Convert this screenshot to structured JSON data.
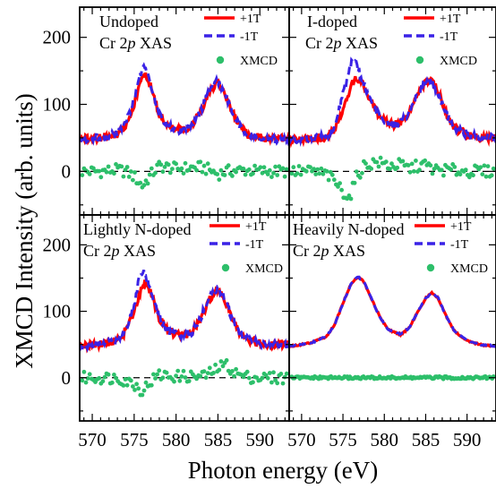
{
  "colors": {
    "plus": "#ff0000",
    "minus": "#3a22e6",
    "xmcd": "#2dbf6a",
    "axis": "#000000"
  },
  "icons": {
    "xmcd_marker": "filled-circle"
  },
  "figure": {
    "ylabel": "XMCD Intensity (arb. units)",
    "xlabel": "Photon energy (eV)",
    "xticks": [
      "570",
      "575",
      "580",
      "585",
      "590"
    ],
    "yticks": [
      "0",
      "100",
      "200"
    ]
  },
  "chart_data": [
    {
      "type": "line",
      "panel": "top-left",
      "title": "Undoped",
      "subtitle": [
        "Cr 2",
        "p",
        " XAS"
      ],
      "xlim": [
        568.5,
        593.5
      ],
      "ylim": [
        -65,
        245
      ],
      "series": [
        {
          "name": "+1T",
          "style": "solid",
          "x": [
            569,
            571,
            573,
            574,
            575,
            575.7,
            576.3,
            577,
            578,
            579,
            580,
            581,
            582,
            583,
            584,
            584.8,
            585.5,
            586.5,
            587.5,
            588.5,
            590,
            591.5,
            593
          ],
          "y": [
            48,
            50,
            56,
            70,
            100,
            130,
            148,
            125,
            85,
            68,
            62,
            62,
            70,
            90,
            118,
            132,
            125,
            95,
            68,
            55,
            50,
            48,
            48
          ]
        },
        {
          "name": "-1T",
          "style": "dashed",
          "x": [
            569,
            571,
            573,
            574,
            575,
            575.7,
            576.3,
            577,
            578,
            579,
            580,
            581,
            582,
            583,
            584,
            584.8,
            585.5,
            586.5,
            587.5,
            588.5,
            590,
            591.5,
            593
          ],
          "y": [
            48,
            50,
            56,
            72,
            108,
            145,
            158,
            125,
            85,
            68,
            62,
            62,
            70,
            92,
            122,
            134,
            125,
            95,
            68,
            55,
            50,
            48,
            48
          ]
        },
        {
          "name": "XMCD",
          "style": "markers",
          "x": [
            569,
            571,
            573,
            574,
            575,
            576,
            577,
            578,
            580,
            583,
            584,
            585,
            586,
            588,
            590,
            593
          ],
          "y": [
            0,
            0,
            2,
            0,
            -8,
            -22,
            -5,
            8,
            4,
            6,
            2,
            -4,
            0,
            2,
            0,
            0
          ]
        }
      ]
    },
    {
      "type": "line",
      "panel": "top-right",
      "title": "I-doped",
      "subtitle": [
        "Cr 2",
        "p",
        " XAS"
      ],
      "xlim": [
        568.5,
        593.5
      ],
      "ylim": [
        -65,
        245
      ],
      "series": [
        {
          "name": "+1T",
          "style": "solid",
          "x": [
            569,
            571,
            573,
            574,
            575,
            576,
            576.7,
            577.5,
            578.5,
            579.5,
            581,
            582,
            583,
            584,
            585,
            585.6,
            586.5,
            587.5,
            588.5,
            590,
            591.5,
            593
          ],
          "y": [
            48,
            48,
            52,
            62,
            92,
            128,
            140,
            128,
            100,
            80,
            70,
            72,
            88,
            112,
            132,
            138,
            120,
            85,
            65,
            55,
            50,
            50
          ]
        },
        {
          "name": "-1T",
          "style": "dashed",
          "x": [
            569,
            571,
            573,
            574,
            575,
            576,
            576.4,
            577.2,
            578.5,
            579.5,
            581,
            582,
            583,
            584,
            585,
            585.6,
            586.5,
            587.5,
            588.5,
            590,
            591.5,
            593
          ],
          "y": [
            48,
            48,
            52,
            68,
            115,
            160,
            168,
            140,
            100,
            80,
            70,
            72,
            88,
            115,
            135,
            136,
            118,
            85,
            65,
            55,
            50,
            50
          ]
        },
        {
          "name": "XMCD",
          "style": "markers",
          "x": [
            569,
            571,
            573,
            574,
            575,
            575.8,
            576.5,
            577.5,
            579,
            581,
            582,
            583,
            584,
            585,
            586,
            588,
            590,
            593
          ],
          "y": [
            0,
            0,
            -4,
            -15,
            -30,
            -40,
            -12,
            8,
            14,
            8,
            10,
            4,
            8,
            10,
            2,
            2,
            0,
            0
          ]
        }
      ]
    },
    {
      "type": "line",
      "panel": "bottom-left",
      "title": "Lightly N-doped",
      "subtitle": [
        "Cr 2",
        "p",
        " XAS"
      ],
      "xlim": [
        568.5,
        593.5
      ],
      "ylim": [
        -65,
        245
      ],
      "series": [
        {
          "name": "+1T",
          "style": "solid",
          "x": [
            569,
            571,
            573,
            574,
            575,
            575.8,
            576.4,
            577,
            578,
            579,
            580,
            581,
            582,
            583,
            584,
            584.8,
            585.6,
            586.5,
            587.5,
            588.5,
            590,
            591.5,
            593
          ],
          "y": [
            48,
            50,
            56,
            70,
            100,
            130,
            145,
            128,
            90,
            72,
            65,
            64,
            70,
            90,
            118,
            132,
            125,
            95,
            70,
            58,
            52,
            50,
            50
          ]
        },
        {
          "name": "-1T",
          "style": "dashed",
          "x": [
            569,
            571,
            573,
            574,
            575,
            575.6,
            576.1,
            577,
            578,
            579,
            580,
            581,
            582,
            583,
            584,
            584.8,
            585.6,
            586.5,
            587.5,
            588.5,
            590,
            591.5,
            593
          ],
          "y": [
            48,
            50,
            56,
            74,
            110,
            150,
            163,
            130,
            90,
            72,
            65,
            64,
            70,
            92,
            122,
            134,
            125,
            95,
            70,
            58,
            52,
            50,
            50
          ]
        },
        {
          "name": "XMCD",
          "style": "markers",
          "x": [
            569,
            571,
            573,
            574,
            575,
            576,
            577,
            578,
            580,
            583,
            584,
            585,
            586,
            587,
            588,
            590,
            593
          ],
          "y": [
            0,
            0,
            0,
            -4,
            -10,
            -20,
            -5,
            4,
            2,
            2,
            6,
            15,
            20,
            8,
            2,
            0,
            0
          ]
        }
      ]
    },
    {
      "type": "line",
      "panel": "bottom-right",
      "title": "Heavily N-doped",
      "subtitle": [
        "Cr 2",
        "p",
        " XAS"
      ],
      "xlim": [
        568.5,
        593.5
      ],
      "ylim": [
        -65,
        245
      ],
      "series": [
        {
          "name": "+1T",
          "style": "solid",
          "x": [
            569,
            571,
            573,
            574,
            575,
            576,
            576.8,
            577.5,
            578.5,
            579.5,
            580.5,
            582,
            583,
            584,
            585,
            585.8,
            586.5,
            587.5,
            588.5,
            590,
            591.5,
            593
          ],
          "y": [
            48,
            52,
            62,
            80,
            112,
            142,
            152,
            145,
            118,
            90,
            72,
            65,
            75,
            98,
            120,
            128,
            120,
            92,
            70,
            56,
            50,
            48
          ]
        },
        {
          "name": "-1T",
          "style": "dashed",
          "x": [
            569,
            571,
            573,
            574,
            575,
            576,
            576.8,
            577.5,
            578.5,
            579.5,
            580.5,
            582,
            583,
            584,
            585,
            585.8,
            586.5,
            587.5,
            588.5,
            590,
            591.5,
            593
          ],
          "y": [
            48,
            52,
            62,
            80,
            112,
            142,
            152,
            145,
            118,
            90,
            72,
            65,
            75,
            98,
            120,
            128,
            120,
            92,
            70,
            56,
            50,
            48
          ]
        },
        {
          "name": "XMCD",
          "style": "markers",
          "x": [
            569,
            573,
            577,
            581,
            585,
            589,
            593
          ],
          "y": [
            0,
            0,
            0,
            0,
            0,
            0,
            0
          ]
        }
      ]
    }
  ]
}
